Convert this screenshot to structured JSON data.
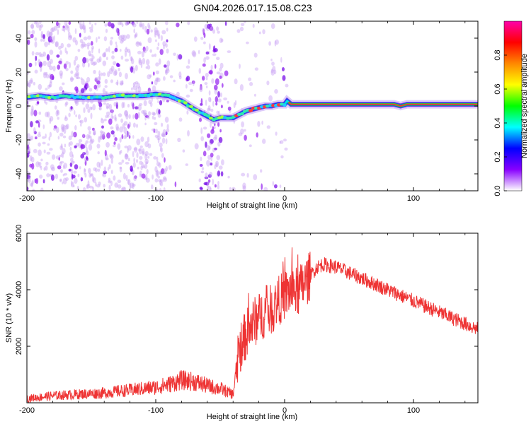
{
  "title": "GN04.2026.017.15.08.C23",
  "chart_data": [
    {
      "type": "heatmap",
      "xlabel": "Height of straight line (km)",
      "ylabel": "Frequency (Hz)",
      "xlim": [
        -200,
        150
      ],
      "ylim": [
        -50,
        50
      ],
      "xticks": [
        -200,
        -100,
        0,
        100
      ],
      "yticks": [
        -40,
        -20,
        0,
        20,
        40
      ],
      "colorbar": {
        "label": "Normalized spectral amplitude",
        "range": [
          0,
          1
        ],
        "ticks": [
          0.0,
          0.2,
          0.4,
          0.6,
          0.8
        ],
        "colors": [
          "#ffffff",
          "#8800ff",
          "#0000ff",
          "#00ffff",
          "#00ff00",
          "#ffff00",
          "#ff8800",
          "#ff0000",
          "#ff00aa"
        ]
      },
      "trace": {
        "x": [
          -200,
          -190,
          -180,
          -170,
          -160,
          -150,
          -140,
          -130,
          -120,
          -110,
          -100,
          -90,
          -80,
          -70,
          -60,
          -55,
          -50,
          -45,
          -40,
          -35,
          -30,
          -25,
          -20,
          -15,
          -10,
          -5,
          0,
          2,
          5,
          10,
          50,
          85,
          90,
          95,
          150
        ],
        "y": [
          5,
          6,
          5,
          6,
          5,
          5,
          5,
          6,
          6,
          6,
          7,
          6,
          3,
          -2,
          -6,
          -8,
          -7,
          -7,
          -7,
          -5,
          -3,
          -2,
          -1,
          0,
          0,
          1,
          1,
          3,
          1,
          1,
          1,
          1,
          0,
          1,
          1
        ]
      },
      "noise_region": [
        -200,
        -48
      ]
    },
    {
      "type": "line",
      "xlabel": "Height of straight line (km)",
      "ylabel": "SNR (10 * v/v)",
      "xlim": [
        -200,
        150
      ],
      "ylim": [
        0,
        6000
      ],
      "xticks": [
        -200,
        -100,
        0,
        100
      ],
      "yticks": [
        2000,
        4000,
        6000
      ],
      "color": "#ee3333",
      "series": [
        {
          "name": "SNR",
          "x": [
            -200,
            -180,
            -160,
            -140,
            -120,
            -100,
            -90,
            -80,
            -70,
            -60,
            -50,
            -40,
            -35,
            -30,
            -25,
            -20,
            -15,
            -10,
            -5,
            0,
            5,
            10,
            15,
            20,
            25,
            30,
            35,
            40,
            50,
            60,
            70,
            80,
            90,
            100,
            110,
            120,
            130,
            140,
            150
          ],
          "values": [
            150,
            250,
            300,
            350,
            450,
            550,
            650,
            800,
            750,
            600,
            500,
            300,
            1900,
            2400,
            2800,
            3000,
            3200,
            3300,
            3600,
            3800,
            4000,
            3900,
            4200,
            4500,
            4800,
            4900,
            4850,
            4800,
            4600,
            4400,
            4200,
            4000,
            3800,
            3600,
            3400,
            3200,
            3000,
            2800,
            2600
          ]
        }
      ]
    }
  ]
}
